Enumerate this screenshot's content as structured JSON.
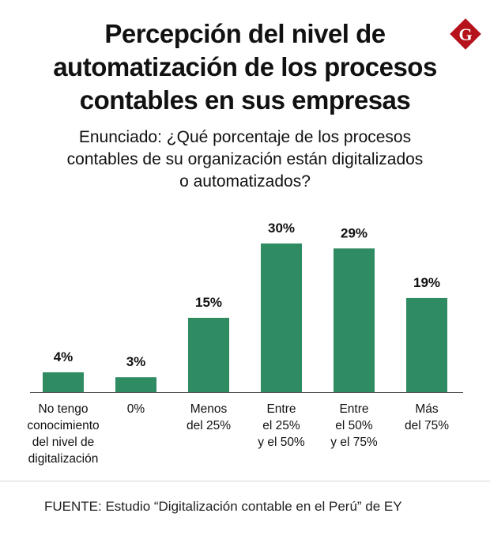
{
  "title_lines": [
    "Percepción del nivel de",
    "automatización de los procesos",
    "contables en sus empresas"
  ],
  "subtitle_lines": [
    "Enunciado: ¿Qué porcentaje de los procesos",
    "contables de su organización están digitalizados",
    "o automatizados?"
  ],
  "logo": {
    "letter": "G",
    "color": "#b5121b"
  },
  "source": "FUENTE: Estudio “Digitalización contable en el Perú” de EY",
  "colors": {
    "bar": "#2e8b62",
    "axis": "#555555"
  },
  "chart_data": {
    "type": "bar",
    "title": "Percepción del nivel de automatización de los procesos contables en sus empresas",
    "categories": [
      [
        "No tengo",
        "conocimiento",
        "del nivel de",
        "digitalización"
      ],
      [
        "0%"
      ],
      [
        "Menos",
        "del 25%"
      ],
      [
        "Entre",
        "el 25%",
        "y el 50%"
      ],
      [
        "Entre",
        "el 50%",
        "y el 75%"
      ],
      [
        "Más",
        "del 75%"
      ]
    ],
    "values": [
      4,
      3,
      15,
      30,
      29,
      19
    ],
    "data_labels": [
      "4%",
      "3%",
      "15%",
      "30%",
      "29%",
      "19%"
    ],
    "ylim": [
      0,
      30
    ],
    "xlabel": "",
    "ylabel": "",
    "grid": false
  }
}
